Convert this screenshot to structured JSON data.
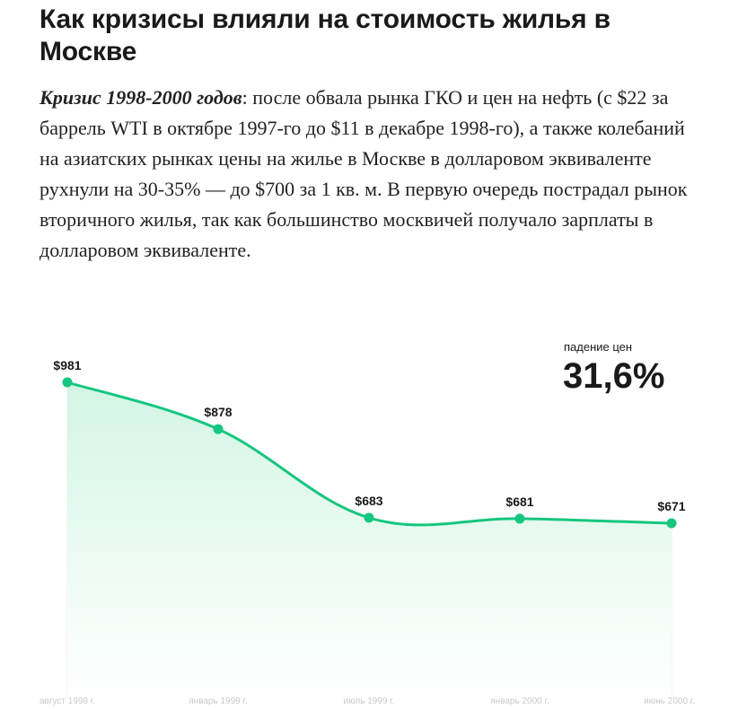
{
  "article": {
    "title": "Как кризисы влияли на стоимость жилья в Москве",
    "lead": "Кризис 1998-2000 годов",
    "body": ": после обвала рынка ГКО и цен на нефть (с $22 за баррель WTI в октябре 1997-го до $11 в декабре 1998-го), а также колебаний на азиатских рынках цены на жилье в Москве в долларовом эквиваленте рухнули на 30-35% — до $700 за 1 кв. м. В первую очередь пострадал рынок вторичного жилья, так как большинство москвичей получало зарплаты в долларовом эквиваленте."
  },
  "chart_data": {
    "type": "area",
    "title": "",
    "xlabel": "",
    "ylabel": "",
    "categories": [
      "август 1998 г.",
      "январь 1999 г.",
      "июль 1999 г.",
      "январь 2000 г.",
      "июнь 2000 г."
    ],
    "values": [
      981,
      878,
      683,
      681,
      671
    ],
    "value_labels": [
      "$981",
      "$878",
      "$683",
      "$681",
      "$671"
    ],
    "grid": false,
    "legend": "none",
    "stat": {
      "caption": "падение цен",
      "value": "31,6%"
    },
    "colors": {
      "line": "#15c67f",
      "point": "#15c67f",
      "fill_top": "#d3f5e5",
      "fill_bottom": "#ffffff",
      "guide": "#ececec",
      "tick_text": "#c9c9c9"
    }
  }
}
